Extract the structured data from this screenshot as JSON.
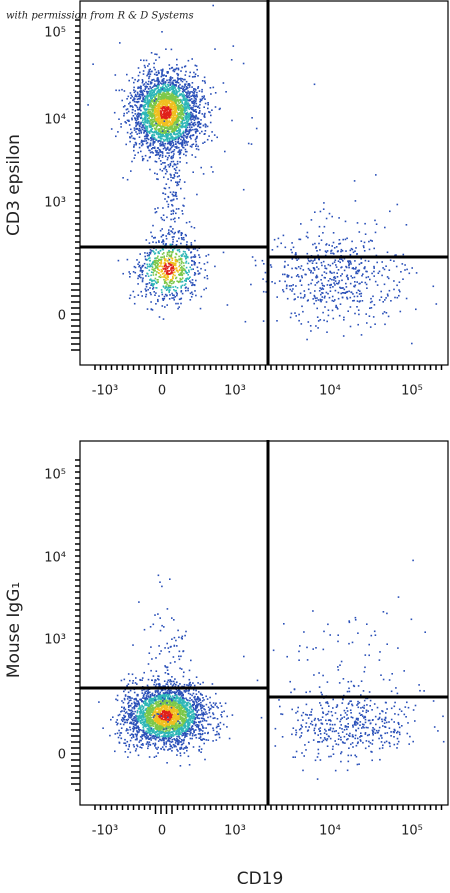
{
  "watermark": "with permission from R & D Systems",
  "x_axis_label": "CD19",
  "x_tick_labels": [
    "-10³",
    "0",
    "10³",
    "10⁴",
    "10⁵"
  ],
  "panels": [
    {
      "y_axis_label": "CD3 epsilon",
      "y_tick_labels": [
        "10⁵",
        "10⁴",
        "10³",
        "0"
      ]
    },
    {
      "y_axis_label": "Mouse IgG₁",
      "y_tick_labels": [
        "10⁵",
        "10⁴",
        "10³",
        "0"
      ]
    }
  ]
}
